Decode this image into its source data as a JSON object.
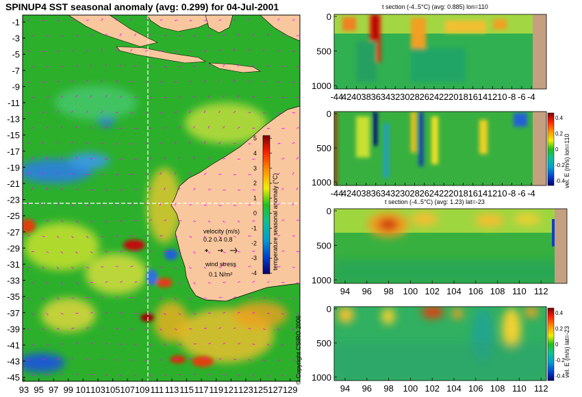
{
  "colors": {
    "land": "#f9c79e",
    "depth_land": "#c4a080",
    "dashline": "#ffffff",
    "vectors": "#ff00ff",
    "text": "#000000"
  },
  "main_map": {
    "title": "SPINUP4 SST seasonal anomaly (avg: 0.299) for 04-Jul-2001",
    "lat_ticks": [
      "-1",
      "-3",
      "-5",
      "-7",
      "-9",
      "-11",
      "-13",
      "-15",
      "-17",
      "-19",
      "-21",
      "-23",
      "-25",
      "-27",
      "-29",
      "-31",
      "-33",
      "-35",
      "-37",
      "-39",
      "-41",
      "-43",
      "-45"
    ],
    "lon_ticks": [
      "93",
      "95",
      "97",
      "99",
      "101",
      "103",
      "105",
      "107",
      "109",
      "111",
      "113",
      "115",
      "117",
      "119",
      "121",
      "123",
      "125",
      "127",
      "129"
    ],
    "colorbar": {
      "label": "temperature seasonal anomaly (°C)",
      "ticks": [
        "5",
        "4",
        "3",
        "2",
        "1",
        "0",
        "-1",
        "-2",
        "-3",
        "-4"
      ]
    },
    "velocity_key": {
      "title": "velocity (m/s)",
      "values": "0.2 0.4 0.8"
    },
    "wind_key": {
      "title": "wind stress",
      "value": "0.1 N/m²"
    },
    "copyright": "© Copyright CSIRO 2006"
  },
  "chart_data": [
    {
      "type": "heatmap",
      "title": "t section (-4..5°C) (avg: 0.885) lon=110",
      "x_ticks": [
        "-44",
        "42",
        "40",
        "38",
        "36",
        "34",
        "32",
        "30",
        "28",
        "26",
        "24",
        "22",
        "20",
        "18",
        "16",
        "14",
        "12",
        "10",
        "-8",
        "-6",
        "-4"
      ],
      "y_ticks": [
        "0",
        "500",
        "1000"
      ],
      "colorbar": null
    },
    {
      "type": "heatmap",
      "title": "",
      "x_ticks": [
        "-44",
        "42",
        "40",
        "38",
        "36",
        "34",
        "32",
        "30",
        "28",
        "26",
        "24",
        "22",
        "20",
        "18",
        "16",
        "14",
        "12",
        "10",
        "-8",
        "-6",
        "-4"
      ],
      "y_ticks": [
        "0",
        "500",
        "1000"
      ],
      "colorbar": {
        "label": "vel. E (m/s) lon=110",
        "ticks": [
          "0.4",
          "0.2",
          "0",
          "-0.2",
          "-0.4"
        ]
      }
    },
    {
      "type": "heatmap",
      "title": "t section (-4..5°C) (avg: 1.23) lat=-23",
      "x_ticks": [
        "94",
        "96",
        "98",
        "100",
        "102",
        "104",
        "106",
        "108",
        "110",
        "112"
      ],
      "y_ticks": [
        "0",
        "500",
        "1000"
      ],
      "colorbar": null
    },
    {
      "type": "heatmap",
      "title": "",
      "x_ticks": [
        "94",
        "96",
        "98",
        "100",
        "102",
        "104",
        "106",
        "108",
        "110",
        "112"
      ],
      "y_ticks": [
        "0",
        "500",
        "1000"
      ],
      "colorbar": {
        "label": "vel. E (m/s) lat=-23",
        "ticks": [
          "0.4",
          "0.2",
          "0",
          "-0.2",
          "-0.4"
        ]
      }
    }
  ]
}
